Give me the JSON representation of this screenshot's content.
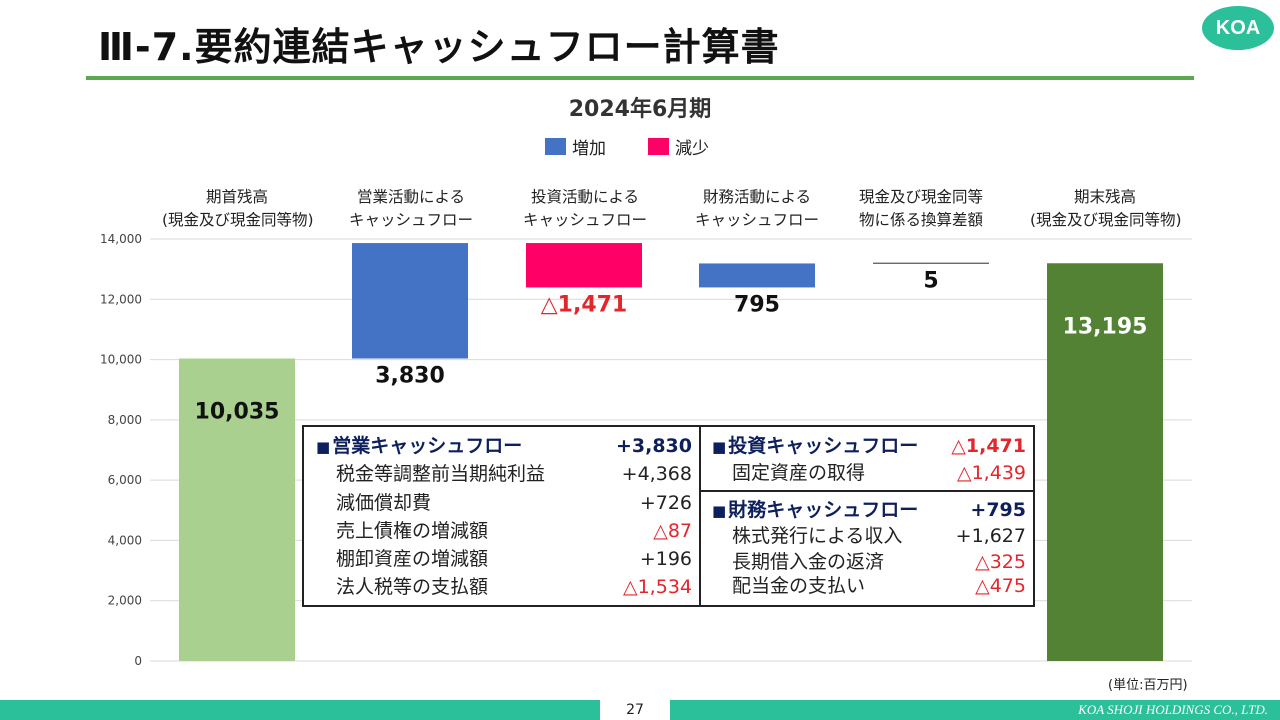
{
  "header": {
    "title": "Ⅲ-7.要約連結キャッシュフロー計算書",
    "logo": "KOA"
  },
  "chart_data": {
    "type": "waterfall",
    "title": "2024年6月期",
    "legend": [
      {
        "label": "増加",
        "color": "#4472c4"
      },
      {
        "label": "減少",
        "color": "#ff0066"
      }
    ],
    "ylim": [
      0,
      14000
    ],
    "yticks": [
      0,
      2000,
      4000,
      6000,
      8000,
      10000,
      12000,
      14000
    ],
    "ytick_labels": [
      "0",
      "2,000",
      "4,000",
      "6,000",
      "8,000",
      "10,000",
      "12,000",
      "14,000"
    ],
    "grid": true,
    "categories": [
      {
        "label1": "期首残高",
        "label2": "(現金及び現金同等物)"
      },
      {
        "label1": "営業活動による",
        "label2": "キャッシュフロー"
      },
      {
        "label1": "投資活動による",
        "label2": "キャッシュフロー"
      },
      {
        "label1": "財務活動による",
        "label2": "キャッシュフロー"
      },
      {
        "label1": "現金及び現金同等",
        "label2": "物に係る換算差額"
      },
      {
        "label1": "期末残高",
        "label2": "(現金及び現金同等物)"
      }
    ],
    "bars": [
      {
        "start": 0,
        "end": 10035,
        "value_label": "10,035",
        "color": "#a9d08e",
        "label_pos": "inside",
        "label_color": "#111111"
      },
      {
        "start": 10035,
        "end": 13865,
        "value_label": "3,830",
        "color": "#4472c4",
        "label_pos": "below",
        "label_color": "#111111"
      },
      {
        "start": 12394,
        "end": 13865,
        "value_label": "△1,471",
        "color": "#ff0066",
        "label_pos": "below",
        "label_color": "#e3252c"
      },
      {
        "start": 12394,
        "end": 13189,
        "value_label": "795",
        "color": "#4472c4",
        "label_pos": "below",
        "label_color": "#111111"
      },
      {
        "start": 13189,
        "end": 13195,
        "value_label": "5",
        "color": "#4472c4",
        "label_pos": "below",
        "label_color": "#111111"
      },
      {
        "start": 0,
        "end": 13195,
        "value_label": "13,195",
        "color": "#548235",
        "label_pos": "inside",
        "label_color": "#ffffff"
      }
    ]
  },
  "details": {
    "operating": {
      "title": "営業キャッシュフロー",
      "total": "+3,830",
      "items": [
        {
          "label": "税金等調整前当期純利益",
          "value": "+4,368",
          "negative": false
        },
        {
          "label": "減価償却費",
          "value": "+726",
          "negative": false
        },
        {
          "label": "売上債権の増減額",
          "value": "△87",
          "negative": true
        },
        {
          "label": "棚卸資産の増減額",
          "value": "+196",
          "negative": false
        },
        {
          "label": "法人税等の支払額",
          "value": "△1,534",
          "negative": true
        }
      ]
    },
    "investing": {
      "title": "投資キャッシュフロー",
      "total": "△1,471",
      "items": [
        {
          "label": "固定資産の取得",
          "value": "△1,439",
          "negative": true
        }
      ]
    },
    "financing": {
      "title": "財務キャッシュフロー",
      "total": "+795",
      "items": [
        {
          "label": "株式発行による収入",
          "value": "+1,627",
          "negative": false
        },
        {
          "label": "長期借入金の返済",
          "value": "△325",
          "negative": true
        },
        {
          "label": "配当金の支払い",
          "value": "△475",
          "negative": true
        }
      ]
    },
    "bullet": "■"
  },
  "unit_note": "(単位:百万円)",
  "footer": {
    "page": "27",
    "company": "KOA SHOJI HOLDINGS CO., LTD."
  }
}
